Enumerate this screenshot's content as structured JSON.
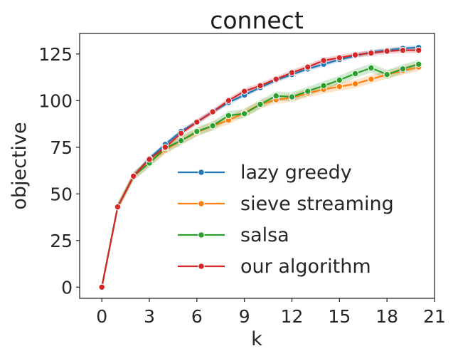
{
  "chart_data": {
    "type": "line",
    "title": "connect",
    "xlabel": "k",
    "ylabel": "objective",
    "xlim": [
      -1.4,
      21
    ],
    "ylim": [
      -6,
      136
    ],
    "xticks": [
      0,
      3,
      6,
      9,
      12,
      15,
      18,
      21
    ],
    "yticks": [
      0,
      25,
      50,
      75,
      100,
      125
    ],
    "grid": false,
    "legend_position": "lower-right",
    "x": [
      0,
      1,
      2,
      3,
      4,
      5,
      6,
      7,
      8,
      9,
      10,
      11,
      12,
      13,
      14,
      15,
      16,
      17,
      18,
      19,
      20
    ],
    "series": [
      {
        "name": "lazy greedy",
        "color": "#1f77b4",
        "values": [
          0,
          43,
          59.5,
          69,
          76.5,
          83.5,
          88.5,
          94,
          99,
          103,
          107,
          111,
          114,
          117,
          119.5,
          122,
          124,
          126,
          127,
          128,
          128.5
        ],
        "band": 1.2
      },
      {
        "name": "sieve streaming",
        "color": "#ff7f0e",
        "values": [
          0,
          43,
          59.5,
          67,
          73.5,
          78.5,
          83,
          86.5,
          89.5,
          93.5,
          98,
          100.5,
          101.5,
          104,
          106,
          107.5,
          109,
          111.5,
          114,
          116,
          118
        ],
        "band": 2.2
      },
      {
        "name": "salsa",
        "color": "#2ca02c",
        "values": [
          0,
          43,
          59.5,
          66.5,
          74.5,
          78.5,
          83.5,
          86.5,
          92,
          93,
          98,
          102.5,
          102,
          105,
          108,
          111,
          114.5,
          117.5,
          114,
          117,
          119.5
        ],
        "band": 2.4
      },
      {
        "name": "our algorithm",
        "color": "#d62728",
        "values": [
          0,
          43,
          59.5,
          68.5,
          75,
          82.5,
          88.5,
          94,
          100,
          105,
          108,
          111.5,
          115,
          118,
          121.5,
          123,
          124.5,
          125.5,
          126.5,
          127,
          127
        ],
        "band": 1.5
      }
    ]
  }
}
